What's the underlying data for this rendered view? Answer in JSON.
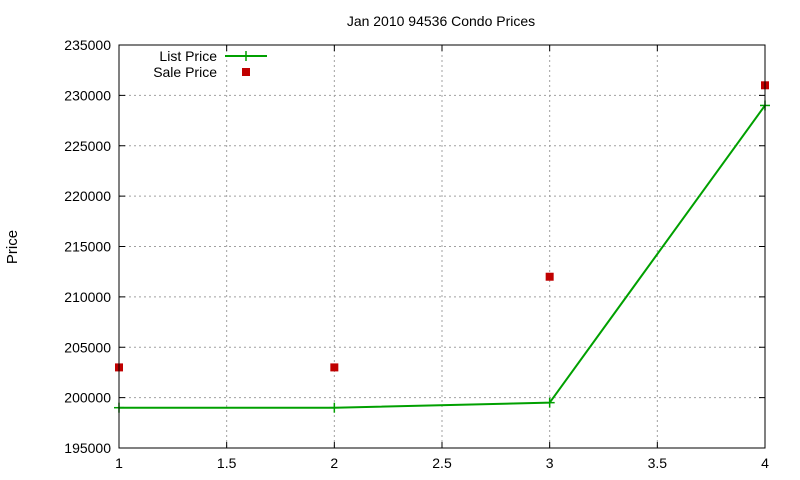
{
  "chart_data": {
    "type": "line",
    "title": "Jan 2010 94536 Condo Prices",
    "xlabel": "",
    "ylabel": "Price",
    "xlim": [
      1,
      4
    ],
    "ylim": [
      195000,
      235000
    ],
    "x_ticks": [
      "1",
      "1.5",
      "2",
      "2.5",
      "3",
      "3.5",
      "4"
    ],
    "y_ticks": [
      "195000",
      "200000",
      "205000",
      "210000",
      "215000",
      "220000",
      "225000",
      "230000",
      "235000"
    ],
    "grid": true,
    "legend_position": "top-left",
    "series": [
      {
        "name": "List Price",
        "style": "linespoints",
        "color": "#00a000",
        "x": [
          1,
          2,
          3,
          4
        ],
        "y": [
          199000,
          199000,
          199500,
          229000
        ]
      },
      {
        "name": "Sale Price",
        "style": "points",
        "color": "#c00000",
        "x": [
          1,
          2,
          3,
          4
        ],
        "y": [
          203000,
          203000,
          212000,
          231000
        ]
      }
    ]
  }
}
